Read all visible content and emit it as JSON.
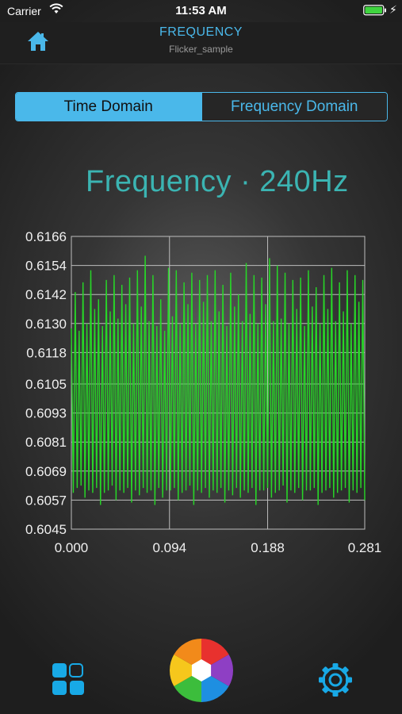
{
  "status_bar": {
    "carrier": "Carrier",
    "time": "11:53 AM",
    "charging_icon": "bolt-icon"
  },
  "nav": {
    "title": "FREQUENCY",
    "subtitle": "Flicker_sample",
    "home_icon": "home-icon"
  },
  "segments": [
    {
      "label": "Time Domain",
      "selected": true
    },
    {
      "label": "Frequency Domain",
      "selected": false
    }
  ],
  "frequency_label": "Frequency · 240Hz",
  "colors": {
    "accent": "#4ab8ea",
    "teal_text": "#3bb4b2",
    "signal": "#27d627",
    "grid": "#c8c8c8"
  },
  "chart_data": {
    "type": "line",
    "title": "",
    "xlabel": "",
    "ylabel": "",
    "xlim": [
      0,
      0.281
    ],
    "ylim": [
      0.6045,
      0.6166
    ],
    "x_ticks": [
      "0.000",
      "0.094",
      "0.188",
      "0.281"
    ],
    "y_ticks": [
      "0.6166",
      "0.6154",
      "0.6142",
      "0.6130",
      "0.6118",
      "0.6105",
      "0.6093",
      "0.6081",
      "0.6069",
      "0.6057",
      "0.6045"
    ],
    "grid": true,
    "series": [
      {
        "color": "#27d627",
        "x_start": 0,
        "x_end": 0.281,
        "y": [
          0.6128,
          0.606,
          0.6143,
          0.6062,
          0.6127,
          0.6063,
          0.6147,
          0.6058,
          0.613,
          0.6061,
          0.6152,
          0.606,
          0.6136,
          0.6062,
          0.614,
          0.6055,
          0.6129,
          0.606,
          0.6148,
          0.6061,
          0.6135,
          0.6063,
          0.615,
          0.6057,
          0.6132,
          0.6061,
          0.6146,
          0.606,
          0.6138,
          0.6062,
          0.6149,
          0.6056,
          0.613,
          0.6061,
          0.6152,
          0.6059,
          0.6137,
          0.6062,
          0.6158,
          0.606,
          0.6131,
          0.6061,
          0.615,
          0.6055,
          0.6129,
          0.6062,
          0.614,
          0.6058,
          0.6127,
          0.6061,
          0.6153,
          0.6061,
          0.6133,
          0.6062,
          0.6152,
          0.6057,
          0.613,
          0.606,
          0.6147,
          0.6061,
          0.6138,
          0.6063,
          0.6151,
          0.6055,
          0.613,
          0.6061,
          0.6148,
          0.606,
          0.6139,
          0.6062,
          0.615,
          0.6058,
          0.6131,
          0.6061,
          0.6152,
          0.606,
          0.6135,
          0.6062,
          0.6146,
          0.6056,
          0.6129,
          0.6061,
          0.6151,
          0.6059,
          0.6137,
          0.6062,
          0.6142,
          0.6058,
          0.6131,
          0.6061,
          0.6155,
          0.606,
          0.6134,
          0.6062,
          0.615,
          0.6055,
          0.613,
          0.6061,
          0.6149,
          0.6061,
          0.6138,
          0.6062,
          0.6157,
          0.6058,
          0.6131,
          0.606,
          0.6154,
          0.6061,
          0.6132,
          0.6063,
          0.6151,
          0.6056,
          0.613,
          0.6061,
          0.6148,
          0.606,
          0.6136,
          0.6062,
          0.6149,
          0.6057,
          0.6129,
          0.6061,
          0.6152,
          0.6061,
          0.6137,
          0.6062,
          0.6145,
          0.6055,
          0.613,
          0.606,
          0.615,
          0.6061,
          0.6136,
          0.6062,
          0.6153,
          0.6058,
          0.6131,
          0.606,
          0.6147,
          0.6061,
          0.6135,
          0.6062,
          0.6152,
          0.6056,
          0.613,
          0.6061,
          0.615,
          0.606,
          0.6139,
          0.6062,
          0.6148,
          0.6057
        ]
      }
    ]
  }
}
